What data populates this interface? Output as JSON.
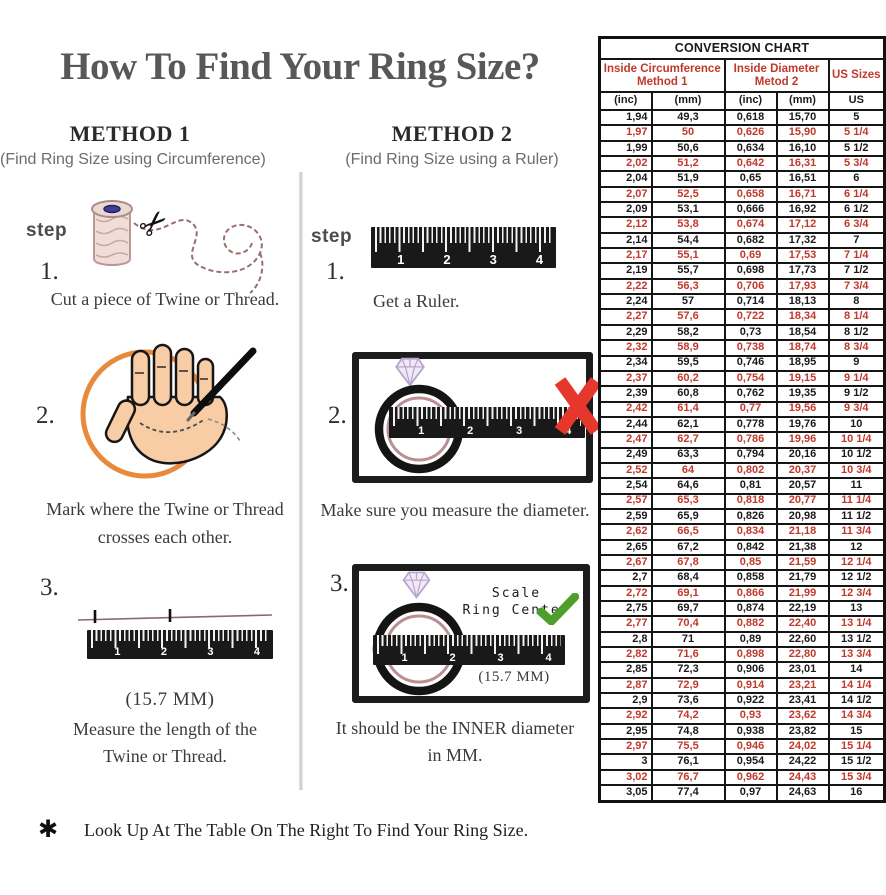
{
  "title": "How To Find Your Ring Size?",
  "colors": {
    "accent_red": "#c0392b",
    "table_border": "#111111",
    "title_gray": "#585858",
    "orange_circle": "#e8893b",
    "green_check": "#4e9e2b",
    "red_x": "#e5372b",
    "ring_inner": "#bb8f92",
    "diamond_lavender": "#c3aed3"
  },
  "ruler_numbers": [
    "1",
    "2",
    "3",
    "4"
  ],
  "method1": {
    "heading": "METHOD 1",
    "subtitle": "(Find Ring Size using Circumference)",
    "step_label": "step",
    "step1_num": "1.",
    "step1_caption": "Cut a piece of Twine or Thread.",
    "step2_num": "2.",
    "step2_caption_line1": "Mark where the Twine or Thread",
    "step2_caption_line2": "crosses each other.",
    "step3_num": "3.",
    "step3_note": "(15.7 MM)",
    "step3_caption_line1": "Measure the length of the",
    "step3_caption_line2": "Twine or Thread."
  },
  "method2": {
    "heading": "METHOD 2",
    "subtitle": "(Find Ring Size using a Ruler)",
    "step_label": "step",
    "step1_num": "1.",
    "step1_caption": "Get a Ruler.",
    "step2_num": "2.",
    "step2_caption": "Make sure you measure the diameter.",
    "step3_num": "3.",
    "scale_label_line1": "Scale",
    "scale_label_line2": "Ring Center",
    "step3_note": "(15.7 MM)",
    "step3_caption_line1": "It should be the INNER diameter",
    "step3_caption_line2": "in MM."
  },
  "footer": {
    "bullet": "✱",
    "text": "Look Up At The Table On The Right To Find Your Ring Size."
  },
  "conversion_chart": {
    "title": "CONVERSION CHART",
    "group_headers": [
      {
        "line1": "Inside Circumference",
        "line2": "Method 1"
      },
      {
        "line1": "Inside Diameter",
        "line2": "Metod 2"
      },
      {
        "line1": "US Sizes",
        "line2": ""
      }
    ],
    "column_headers": [
      "(inc)",
      "(mm)",
      "(inc)",
      "(mm)",
      "US"
    ],
    "rows": [
      [
        "1,94",
        "49,3",
        "0,618",
        "15,70",
        "5"
      ],
      [
        "1,97",
        "50",
        "0,626",
        "15,90",
        "5 1/4"
      ],
      [
        "1,99",
        "50,6",
        "0,634",
        "16,10",
        "5 1/2"
      ],
      [
        "2,02",
        "51,2",
        "0,642",
        "16,31",
        "5 3/4"
      ],
      [
        "2,04",
        "51,9",
        "0,65",
        "16,51",
        "6"
      ],
      [
        "2,07",
        "52,5",
        "0,658",
        "16,71",
        "6 1/4"
      ],
      [
        "2,09",
        "53,1",
        "0,666",
        "16,92",
        "6 1/2"
      ],
      [
        "2,12",
        "53,8",
        "0,674",
        "17,12",
        "6 3/4"
      ],
      [
        "2,14",
        "54,4",
        "0,682",
        "17,32",
        "7"
      ],
      [
        "2,17",
        "55,1",
        "0,69",
        "17,53",
        "7 1/4"
      ],
      [
        "2,19",
        "55,7",
        "0,698",
        "17,73",
        "7 1/2"
      ],
      [
        "2,22",
        "56,3",
        "0,706",
        "17,93",
        "7 3/4"
      ],
      [
        "2,24",
        "57",
        "0,714",
        "18,13",
        "8"
      ],
      [
        "2,27",
        "57,6",
        "0,722",
        "18,34",
        "8 1/4"
      ],
      [
        "2,29",
        "58,2",
        "0,73",
        "18,54",
        "8 1/2"
      ],
      [
        "2,32",
        "58,9",
        "0,738",
        "18,74",
        "8 3/4"
      ],
      [
        "2,34",
        "59,5",
        "0,746",
        "18,95",
        "9"
      ],
      [
        "2,37",
        "60,2",
        "0,754",
        "19,15",
        "9 1/4"
      ],
      [
        "2,39",
        "60,8",
        "0,762",
        "19,35",
        "9 1/2"
      ],
      [
        "2,42",
        "61,4",
        "0,77",
        "19,56",
        "9 3/4"
      ],
      [
        "2,44",
        "62,1",
        "0,778",
        "19,76",
        "10"
      ],
      [
        "2,47",
        "62,7",
        "0,786",
        "19,96",
        "10 1/4"
      ],
      [
        "2,49",
        "63,3",
        "0,794",
        "20,16",
        "10 1/2"
      ],
      [
        "2,52",
        "64",
        "0,802",
        "20,37",
        "10 3/4"
      ],
      [
        "2,54",
        "64,6",
        "0,81",
        "20,57",
        "11"
      ],
      [
        "2,57",
        "65,3",
        "0,818",
        "20,77",
        "11 1/4"
      ],
      [
        "2,59",
        "65,9",
        "0,826",
        "20,98",
        "11 1/2"
      ],
      [
        "2,62",
        "66,5",
        "0,834",
        "21,18",
        "11 3/4"
      ],
      [
        "2,65",
        "67,2",
        "0,842",
        "21,38",
        "12"
      ],
      [
        "2,67",
        "67,8",
        "0,85",
        "21,59",
        "12 1/4"
      ],
      [
        "2,7",
        "68,4",
        "0,858",
        "21,79",
        "12 1/2"
      ],
      [
        "2,72",
        "69,1",
        "0,866",
        "21,99",
        "12 3/4"
      ],
      [
        "2,75",
        "69,7",
        "0,874",
        "22,19",
        "13"
      ],
      [
        "2,77",
        "70,4",
        "0,882",
        "22,40",
        "13 1/4"
      ],
      [
        "2,8",
        "71",
        "0,89",
        "22,60",
        "13 1/2"
      ],
      [
        "2,82",
        "71,6",
        "0,898",
        "22,80",
        "13 3/4"
      ],
      [
        "2,85",
        "72,3",
        "0,906",
        "23,01",
        "14"
      ],
      [
        "2,87",
        "72,9",
        "0,914",
        "23,21",
        "14 1/4"
      ],
      [
        "2,9",
        "73,6",
        "0,922",
        "23,41",
        "14 1/2"
      ],
      [
        "2,92",
        "74,2",
        "0,93",
        "23,62",
        "14 3/4"
      ],
      [
        "2,95",
        "74,8",
        "0,938",
        "23,82",
        "15"
      ],
      [
        "2,97",
        "75,5",
        "0,946",
        "24,02",
        "15 1/4"
      ],
      [
        "3",
        "76,1",
        "0,954",
        "24,22",
        "15 1/2"
      ],
      [
        "3,02",
        "76,7",
        "0,962",
        "24,43",
        "15 3/4"
      ],
      [
        "3,05",
        "77,4",
        "0,97",
        "24,63",
        "16"
      ]
    ]
  }
}
